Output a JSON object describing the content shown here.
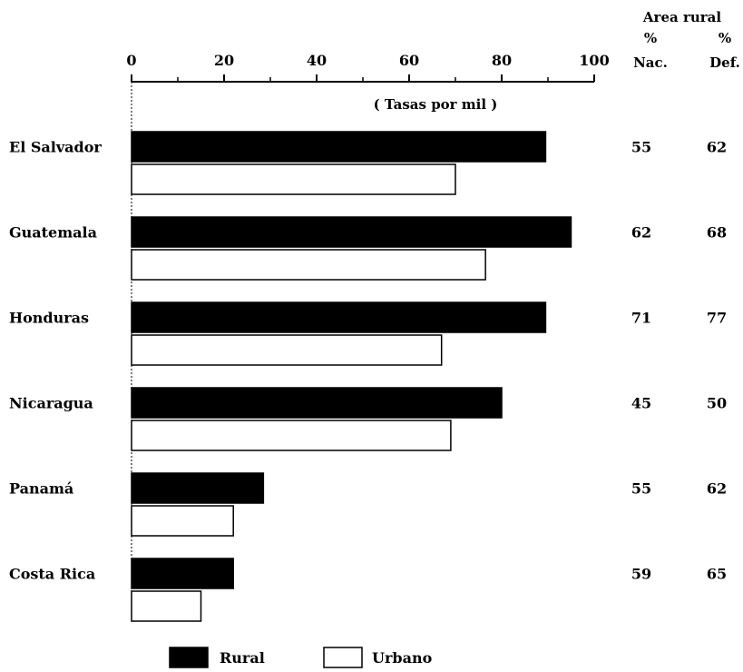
{
  "chart_data": {
    "type": "bar",
    "orientation": "horizontal",
    "annotation": "( Tasas por mil )",
    "xlim": [
      0,
      100
    ],
    "xticks": [
      0,
      20,
      40,
      60,
      80,
      100
    ],
    "categories": [
      "El Salvador",
      "Guatemala",
      "Honduras",
      "Nicaragua",
      "Panamá",
      "Costa Rica"
    ],
    "series": [
      {
        "name": "Rural",
        "color": "#000000",
        "values": [
          89.5,
          95,
          89.5,
          80,
          28.5,
          22
        ]
      },
      {
        "name": "Urbano",
        "color": "#ffffff",
        "values": [
          70,
          76.5,
          67,
          69,
          22,
          15
        ]
      }
    ],
    "legend_position": "bottom-center",
    "side_table": {
      "title": "Area rural",
      "columns": [
        {
          "header_symbol": "%",
          "header": "Nac.",
          "values": [
            "55",
            "62",
            "71",
            "45",
            "55",
            "59"
          ]
        },
        {
          "header_symbol": "%",
          "header": "Def.",
          "values": [
            "62",
            "68",
            "77",
            "50",
            "62",
            "65"
          ]
        }
      ]
    }
  }
}
